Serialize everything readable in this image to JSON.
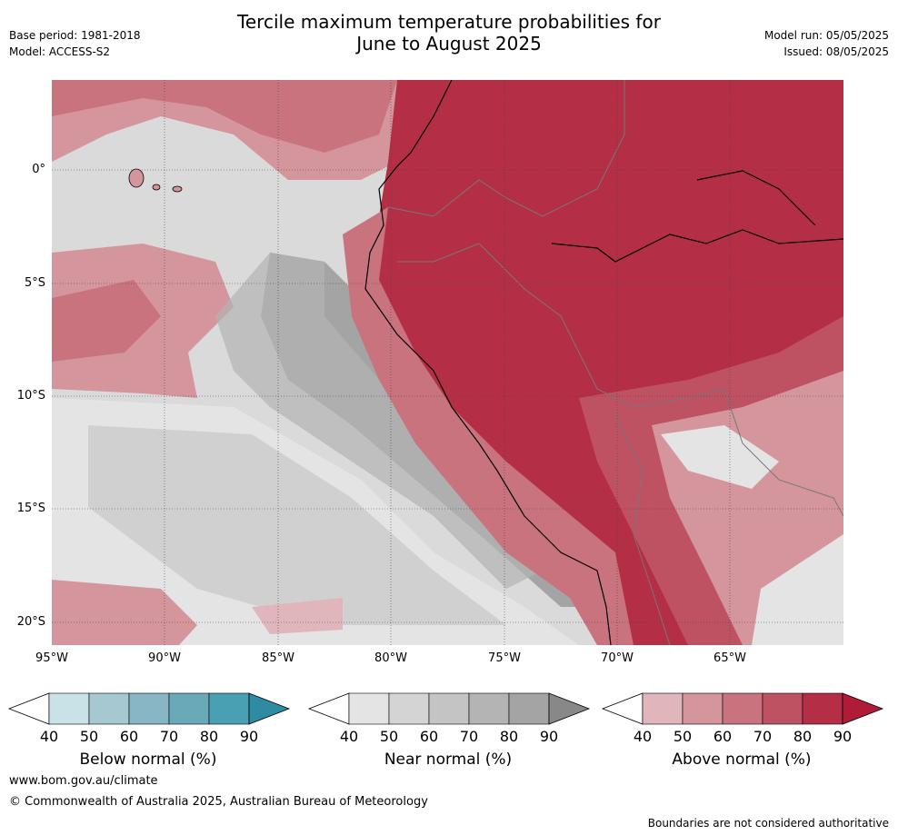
{
  "title_line1": "Tercile maximum temperature probabilities for",
  "title_line2": "June to August 2025",
  "base_period": "Base period: 1981-2018",
  "model": "Model: ACCESS-S2",
  "model_run": "Model run: 05/05/2025",
  "issued": "Issued: 08/05/2025",
  "lat_labels": [
    "0°",
    "5°S",
    "10°S",
    "15°S",
    "20°S"
  ],
  "lon_labels": [
    "95°W",
    "90°W",
    "85°W",
    "80°W",
    "75°W",
    "70°W",
    "65°W"
  ],
  "colorbars": [
    {
      "label": "Below normal (%)",
      "ticks": [
        "40",
        "50",
        "60",
        "70",
        "80",
        "90"
      ],
      "colors": [
        "#c8e2e8",
        "#a6c8d0",
        "#88b6c4",
        "#6aaab8",
        "#48a0b2"
      ],
      "end_color": "#2f8ba3"
    },
    {
      "label": "Near normal (%)",
      "ticks": [
        "40",
        "50",
        "60",
        "70",
        "80",
        "90"
      ],
      "colors": [
        "#e4e4e4",
        "#d4d4d4",
        "#c4c4c4",
        "#b4b4b4",
        "#a4a4a4"
      ],
      "end_color": "#888888"
    },
    {
      "label": "Above normal (%)",
      "ticks": [
        "40",
        "50",
        "60",
        "70",
        "80",
        "90"
      ],
      "colors": [
        "#e0b6bc",
        "#d4959c",
        "#c8737e",
        "#be5262",
        "#b42f46"
      ],
      "end_color": "#b01c38"
    }
  ],
  "website": "www.bom.gov.au/climate",
  "copyright": "© Commonwealth of Australia 2025, Australian Bureau of Meteorology",
  "disclaimer": "Boundaries are not considered authoritative"
}
